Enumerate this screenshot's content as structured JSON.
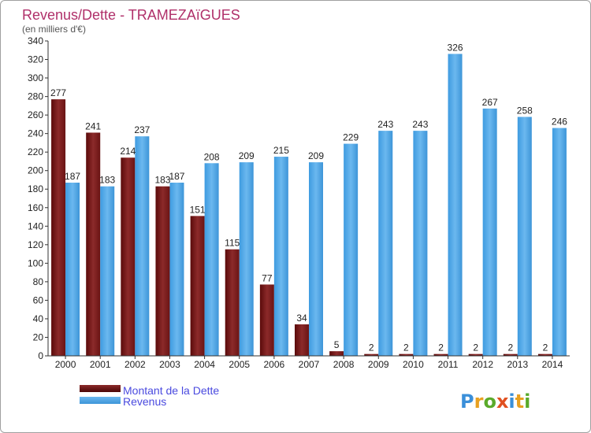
{
  "chart_data": {
    "type": "bar",
    "title": "Revenus/Dette - TRAMEZAïGUES",
    "subtitle": "(en milliers d'€)",
    "categories": [
      "2000",
      "2001",
      "2002",
      "2003",
      "2004",
      "2005",
      "2006",
      "2007",
      "2008",
      "2009",
      "2010",
      "2011",
      "2012",
      "2013",
      "2014"
    ],
    "series": [
      {
        "name": "Montant de la Dette",
        "color": "#7a1e1e",
        "values": [
          277,
          241,
          214,
          183,
          151,
          115,
          77,
          34,
          5,
          2,
          2,
          2,
          2,
          2,
          2
        ]
      },
      {
        "name": "Revenus",
        "color": "#4da6e8",
        "values": [
          187,
          183,
          237,
          187,
          208,
          209,
          215,
          209,
          229,
          243,
          243,
          326,
          267,
          258,
          246
        ]
      }
    ],
    "ylim": [
      0,
      340
    ],
    "yticks": [
      0,
      20,
      40,
      60,
      80,
      100,
      120,
      140,
      160,
      180,
      200,
      220,
      240,
      260,
      280,
      300,
      320,
      340
    ],
    "grid": false,
    "legend": "bottom-left",
    "title_color": "#b0306a",
    "legend_text_color": "#4a4adf"
  },
  "logo": {
    "text": "Proxiti"
  }
}
